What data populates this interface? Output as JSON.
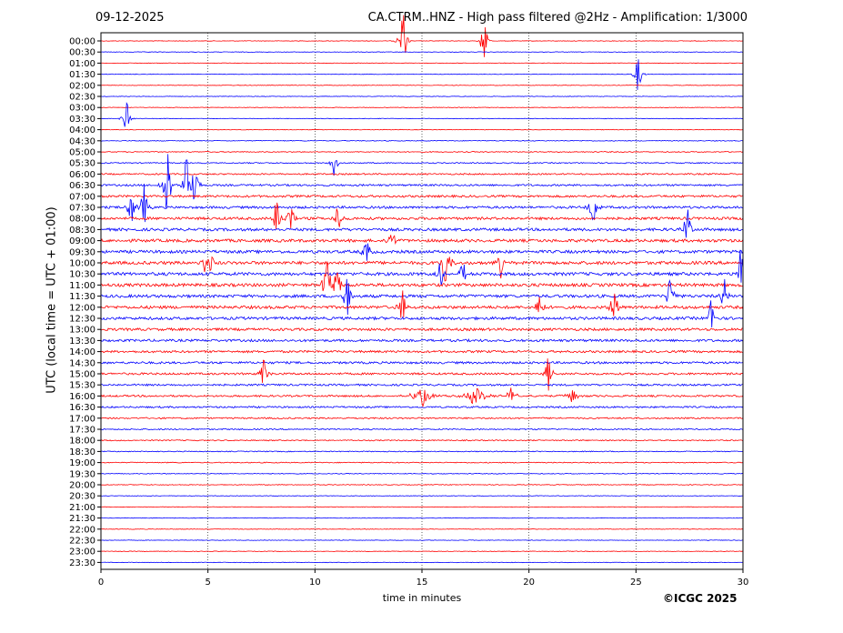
{
  "header": {
    "date": "09-12-2025",
    "title": "CA.CTRM..HNZ - High pass filtered @2Hz - Amplification: 1/3000"
  },
  "footer": {
    "copyright": "©ICGC 2025"
  },
  "chart_data": {
    "type": "line",
    "xlabel": "time in minutes",
    "ylabel": "UTC (local time = UTC + 01:00)",
    "xlim": [
      0,
      30
    ],
    "xticks": [
      0,
      5,
      10,
      15,
      20,
      25,
      30
    ],
    "grid": {
      "vertical_dotted": [
        5,
        10,
        15,
        20,
        25
      ]
    },
    "row_colors": [
      "#ff0000",
      "#0000ff"
    ],
    "rows": [
      "00:00",
      "00:30",
      "01:00",
      "01:30",
      "02:00",
      "02:30",
      "03:00",
      "03:30",
      "04:00",
      "04:30",
      "05:00",
      "05:30",
      "06:00",
      "06:30",
      "07:00",
      "07:30",
      "08:00",
      "08:30",
      "09:00",
      "09:30",
      "10:00",
      "10:30",
      "11:00",
      "11:30",
      "12:00",
      "12:30",
      "13:00",
      "13:30",
      "14:00",
      "14:30",
      "15:00",
      "15:30",
      "16:00",
      "16:30",
      "17:00",
      "17:30",
      "18:00",
      "18:30",
      "19:00",
      "19:30",
      "20:00",
      "20:30",
      "21:00",
      "21:30",
      "22:00",
      "22:30",
      "23:00",
      "23:30"
    ],
    "row_noise": [
      0.3,
      0.3,
      0.3,
      0.3,
      0.3,
      0.3,
      0.3,
      0.3,
      0.3,
      0.4,
      0.5,
      0.6,
      0.8,
      1.0,
      1.2,
      1.3,
      1.4,
      1.5,
      1.6,
      1.6,
      1.7,
      1.7,
      1.7,
      1.6,
      1.6,
      1.5,
      1.4,
      1.3,
      1.2,
      1.2,
      1.1,
      1.0,
      1.0,
      0.9,
      0.8,
      0.7,
      0.6,
      0.5,
      0.5,
      0.4,
      0.4,
      0.3,
      0.3,
      0.3,
      0.3,
      0.3,
      0.3,
      0.3
    ],
    "events": [
      {
        "row": 0,
        "t": 14.1,
        "amp": 8,
        "dur": 0.2
      },
      {
        "row": 0,
        "t": 17.9,
        "amp": 5,
        "dur": 0.2
      },
      {
        "row": 3,
        "t": 25.1,
        "amp": 4,
        "dur": 0.2
      },
      {
        "row": 7,
        "t": 1.2,
        "amp": 5,
        "dur": 0.2
      },
      {
        "row": 11,
        "t": 10.9,
        "amp": 3,
        "dur": 0.2
      },
      {
        "row": 13,
        "t": 3.1,
        "amp": 8,
        "dur": 0.25
      },
      {
        "row": 13,
        "t": 4.0,
        "amp": 7,
        "dur": 0.2
      },
      {
        "row": 13,
        "t": 4.4,
        "amp": 6,
        "dur": 0.2
      },
      {
        "row": 15,
        "t": 1.4,
        "amp": 5,
        "dur": 0.2
      },
      {
        "row": 15,
        "t": 2.0,
        "amp": 6,
        "dur": 0.2
      },
      {
        "row": 15,
        "t": 23.0,
        "amp": 5,
        "dur": 0.2
      },
      {
        "row": 16,
        "t": 8.2,
        "amp": 5,
        "dur": 0.2
      },
      {
        "row": 16,
        "t": 8.9,
        "amp": 5,
        "dur": 0.2
      },
      {
        "row": 16,
        "t": 11.1,
        "amp": 4,
        "dur": 0.2
      },
      {
        "row": 17,
        "t": 27.4,
        "amp": 5,
        "dur": 0.2
      },
      {
        "row": 18,
        "t": 13.6,
        "amp": 4,
        "dur": 0.2
      },
      {
        "row": 19,
        "t": 12.4,
        "amp": 4,
        "dur": 0.2
      },
      {
        "row": 20,
        "t": 5.0,
        "amp": 7,
        "dur": 0.25
      },
      {
        "row": 20,
        "t": 16.1,
        "amp": 7,
        "dur": 0.25
      },
      {
        "row": 20,
        "t": 18.7,
        "amp": 3,
        "dur": 0.2
      },
      {
        "row": 21,
        "t": 15.9,
        "amp": 4,
        "dur": 0.2
      },
      {
        "row": 21,
        "t": 16.9,
        "amp": 3,
        "dur": 0.2
      },
      {
        "row": 21,
        "t": 29.9,
        "amp": 6,
        "dur": 0.2
      },
      {
        "row": 22,
        "t": 10.6,
        "amp": 7,
        "dur": 0.25
      },
      {
        "row": 22,
        "t": 11.0,
        "amp": 6,
        "dur": 0.2
      },
      {
        "row": 23,
        "t": 11.5,
        "amp": 6,
        "dur": 0.2
      },
      {
        "row": 23,
        "t": 26.6,
        "amp": 5,
        "dur": 0.2
      },
      {
        "row": 23,
        "t": 29.1,
        "amp": 5,
        "dur": 0.2
      },
      {
        "row": 24,
        "t": 14.1,
        "amp": 5,
        "dur": 0.2
      },
      {
        "row": 24,
        "t": 20.5,
        "amp": 4,
        "dur": 0.2
      },
      {
        "row": 24,
        "t": 24.0,
        "amp": 5,
        "dur": 0.2
      },
      {
        "row": 25,
        "t": 28.5,
        "amp": 4,
        "dur": 0.2
      },
      {
        "row": 30,
        "t": 7.6,
        "amp": 4,
        "dur": 0.2
      },
      {
        "row": 30,
        "t": 20.9,
        "amp": 4,
        "dur": 0.2
      },
      {
        "row": 32,
        "t": 19.2,
        "amp": 5,
        "dur": 0.2
      },
      {
        "row": 32,
        "t": 15.0,
        "amp": 2,
        "dur": 0.6
      },
      {
        "row": 32,
        "t": 17.5,
        "amp": 2,
        "dur": 0.6
      },
      {
        "row": 32,
        "t": 22.0,
        "amp": 1.5,
        "dur": 0.4
      }
    ]
  }
}
